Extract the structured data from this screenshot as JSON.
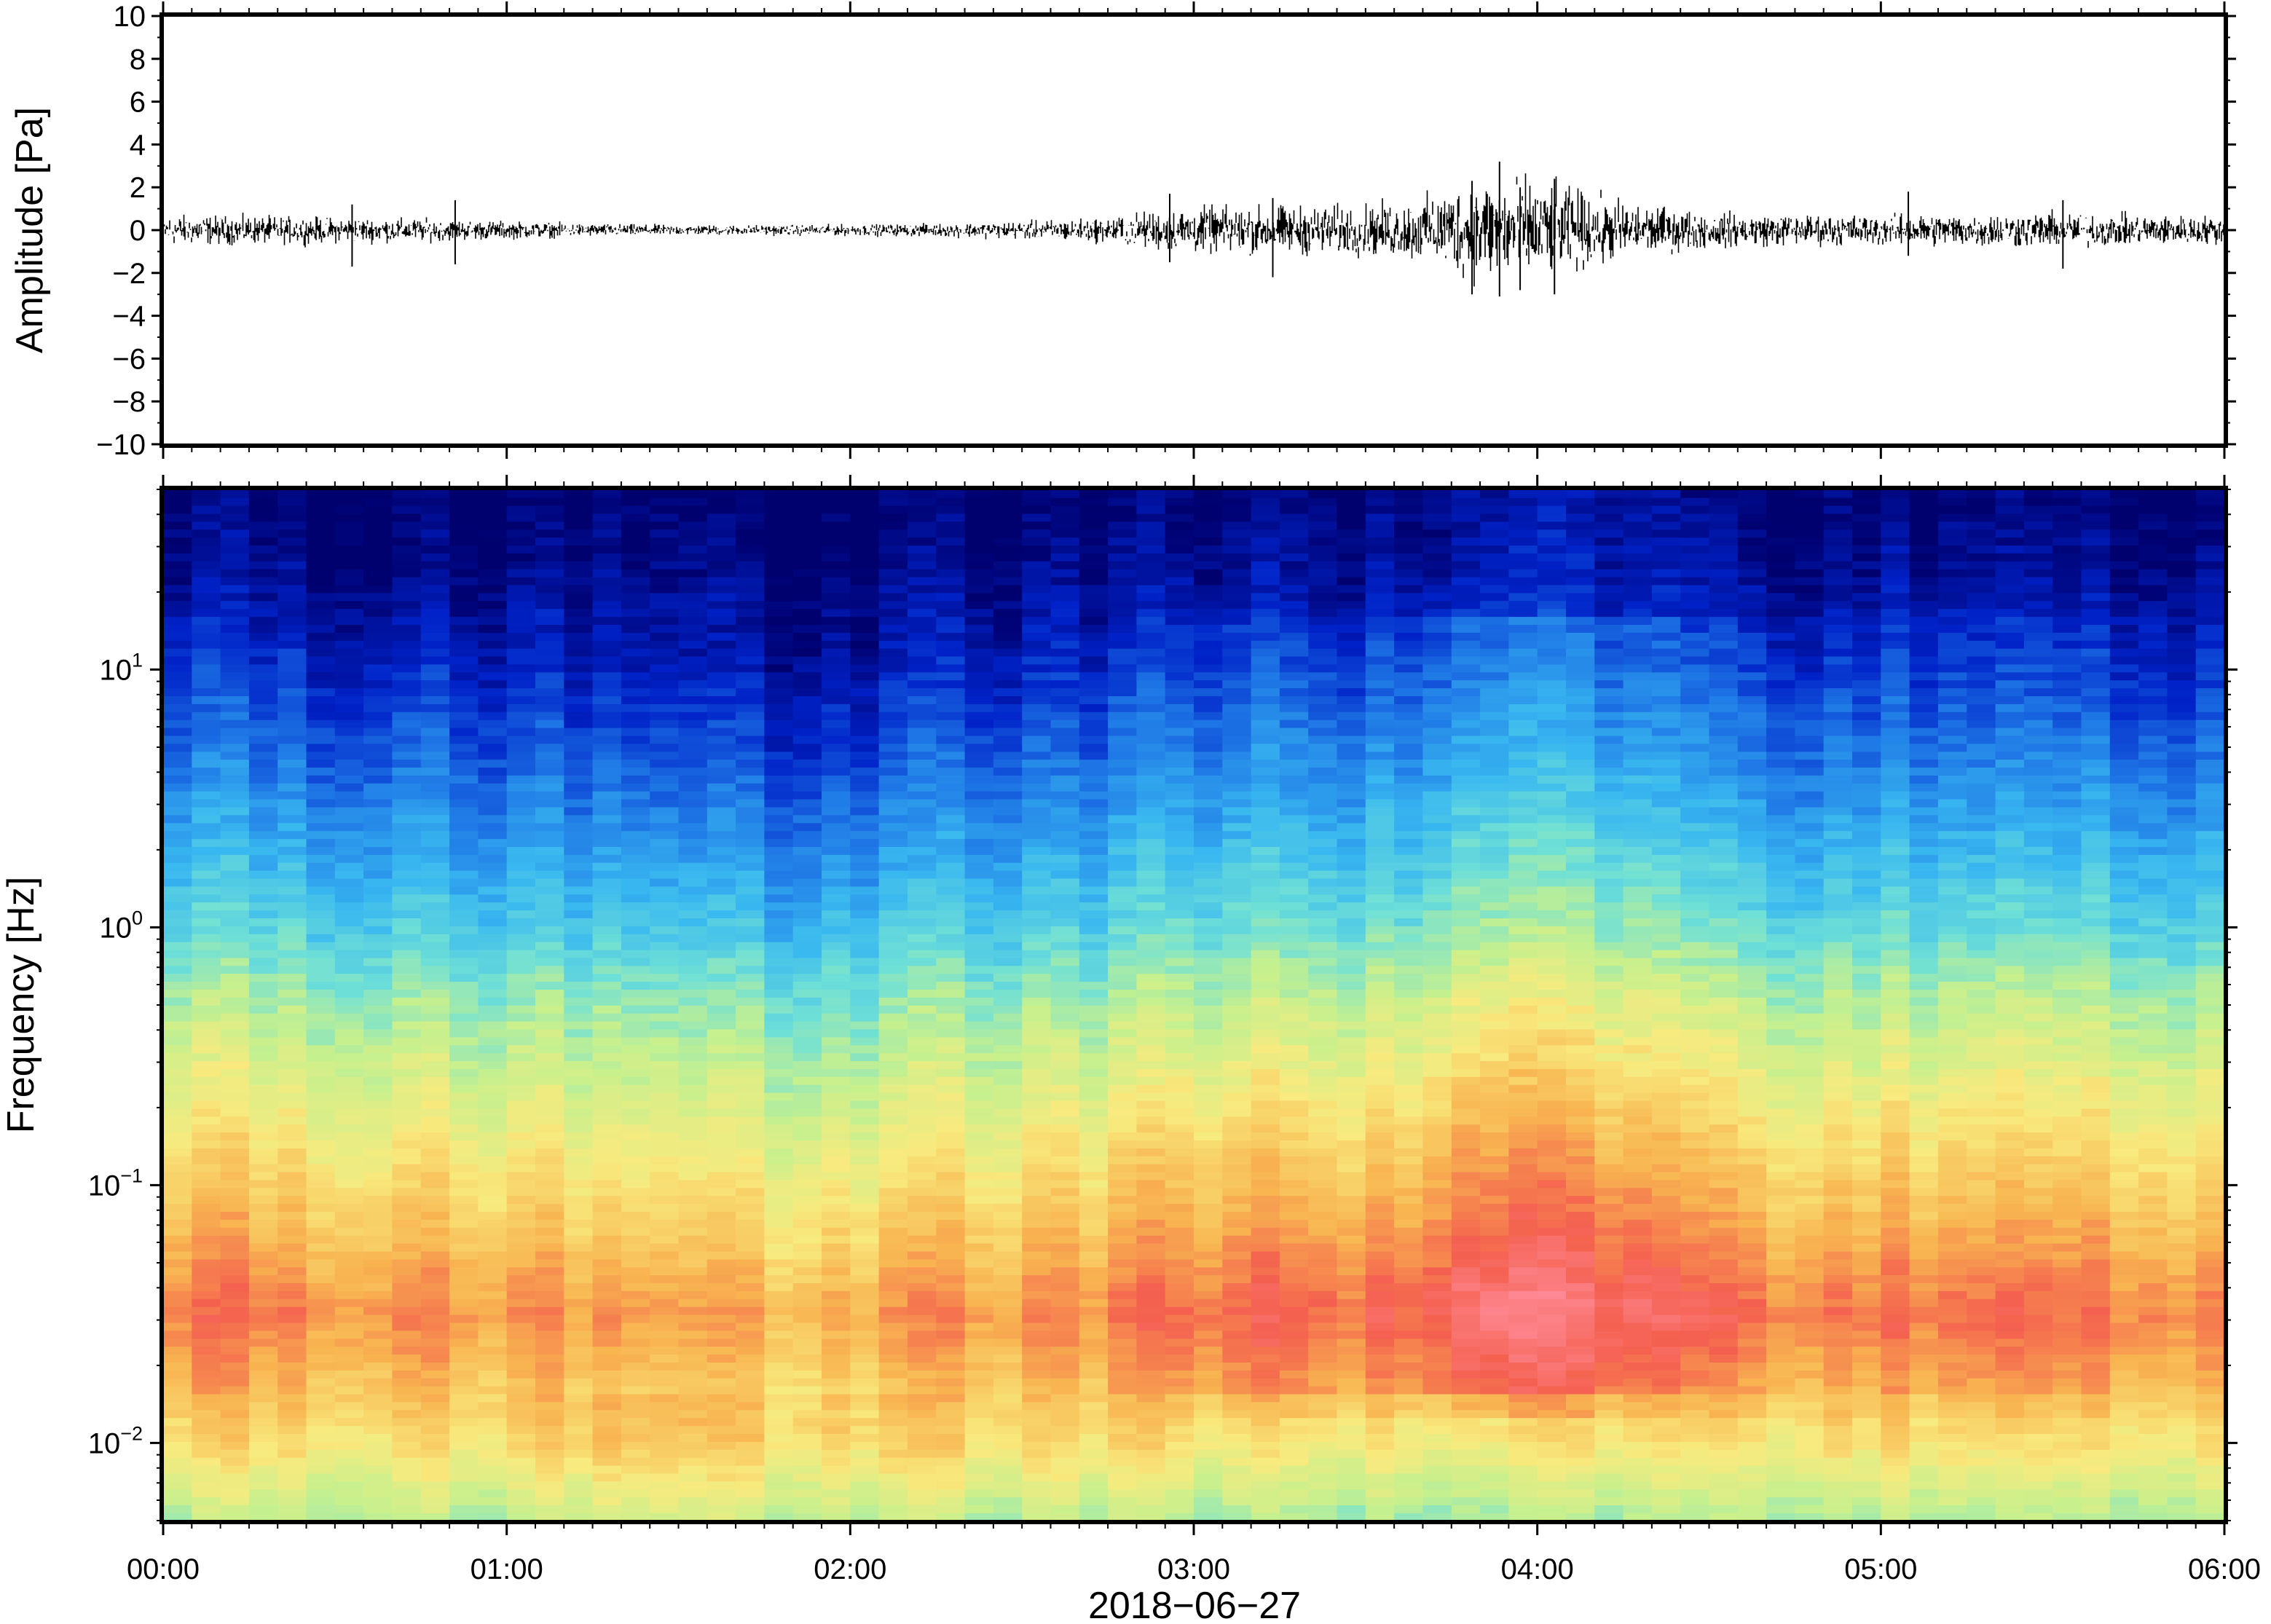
{
  "chart_data": [
    {
      "type": "line",
      "ylabel": "Amplitude [Pa]",
      "ylim": [
        -10,
        10
      ],
      "yticks": [
        10,
        8,
        6,
        4,
        2,
        0,
        -2,
        -4,
        -6,
        -8,
        -10
      ],
      "ytick_labels": [
        "10",
        "8",
        "6",
        "4",
        "2",
        "0",
        "−2",
        "−4",
        "−6",
        "−8",
        "−10"
      ],
      "xlim_hours": [
        0,
        6
      ],
      "grid": false,
      "trace_color": "#000000",
      "envelope": {
        "hours": [
          0,
          0.25,
          0.5,
          0.75,
          1.0,
          1.25,
          1.5,
          1.75,
          2.0,
          2.25,
          2.5,
          2.75,
          2.9,
          3.0,
          3.25,
          3.5,
          3.65,
          3.8,
          3.9,
          4.0,
          4.15,
          4.3,
          4.5,
          4.75,
          5.0,
          5.25,
          5.5,
          5.75,
          6.0
        ],
        "amplitude_pa": [
          0.6,
          0.55,
          0.5,
          0.45,
          0.35,
          0.25,
          0.2,
          0.2,
          0.22,
          0.25,
          0.35,
          0.5,
          0.8,
          0.9,
          0.95,
          1.0,
          1.2,
          1.9,
          2.2,
          1.9,
          1.5,
          1.0,
          0.7,
          0.6,
          0.6,
          0.65,
          0.7,
          0.6,
          0.55
        ]
      },
      "spikes": [
        {
          "hour": 0.55,
          "min": -1.7,
          "max": 1.2
        },
        {
          "hour": 0.85,
          "min": -1.6,
          "max": 1.4
        },
        {
          "hour": 2.93,
          "min": -1.5,
          "max": 1.7
        },
        {
          "hour": 3.23,
          "min": -2.2,
          "max": 1.5
        },
        {
          "hour": 3.81,
          "min": -3.0,
          "max": 2.3
        },
        {
          "hour": 3.89,
          "min": -3.1,
          "max": 3.2
        },
        {
          "hour": 3.95,
          "min": -2.8,
          "max": 2.0
        },
        {
          "hour": 4.05,
          "min": -3.0,
          "max": 2.4
        },
        {
          "hour": 5.08,
          "min": -1.2,
          "max": 1.8
        },
        {
          "hour": 5.53,
          "min": -1.8,
          "max": 1.4
        }
      ]
    },
    {
      "type": "heatmap",
      "ylabel": "Frequency [Hz]",
      "yscale": "log",
      "ylim": [
        0.005,
        50
      ],
      "yticks": [
        {
          "base": "10",
          "exp": "1"
        },
        {
          "base": "10",
          "exp": "0"
        },
        {
          "base": "10",
          "exp": "−1"
        },
        {
          "base": "10",
          "exp": "−2"
        }
      ],
      "ytick_values": [
        10,
        1,
        0.1,
        0.01
      ],
      "xlim_hours": [
        0,
        6
      ],
      "xticks": [
        "00:00",
        "01:00",
        "02:00",
        "03:00",
        "04:00",
        "05:00",
        "06:00"
      ],
      "xlabel": "2018−06−27",
      "colormap": [
        "#00006e",
        "#0022c8",
        "#1f78e6",
        "#39b8f0",
        "#6fe0d6",
        "#c6f08e",
        "#f8ea7e",
        "#f8b450",
        "#f4604f",
        "#ff8c9a"
      ],
      "activity": {
        "hours": [
          0,
          0.25,
          0.5,
          0.75,
          1.0,
          1.25,
          1.5,
          1.75,
          2.0,
          2.25,
          2.5,
          2.75,
          2.9,
          3.0,
          3.25,
          3.5,
          3.65,
          3.75,
          3.9,
          4.0,
          4.25,
          4.5,
          4.75,
          5.0,
          5.25,
          5.5,
          5.75,
          6.0
        ],
        "level": [
          0.55,
          0.5,
          0.45,
          0.45,
          0.4,
          0.25,
          0.2,
          0.2,
          0.25,
          0.35,
          0.4,
          0.45,
          0.55,
          0.65,
          0.7,
          0.7,
          0.75,
          1.0,
          1.0,
          0.95,
          0.85,
          0.7,
          0.55,
          0.55,
          0.6,
          0.6,
          0.55,
          0.5
        ]
      }
    }
  ]
}
